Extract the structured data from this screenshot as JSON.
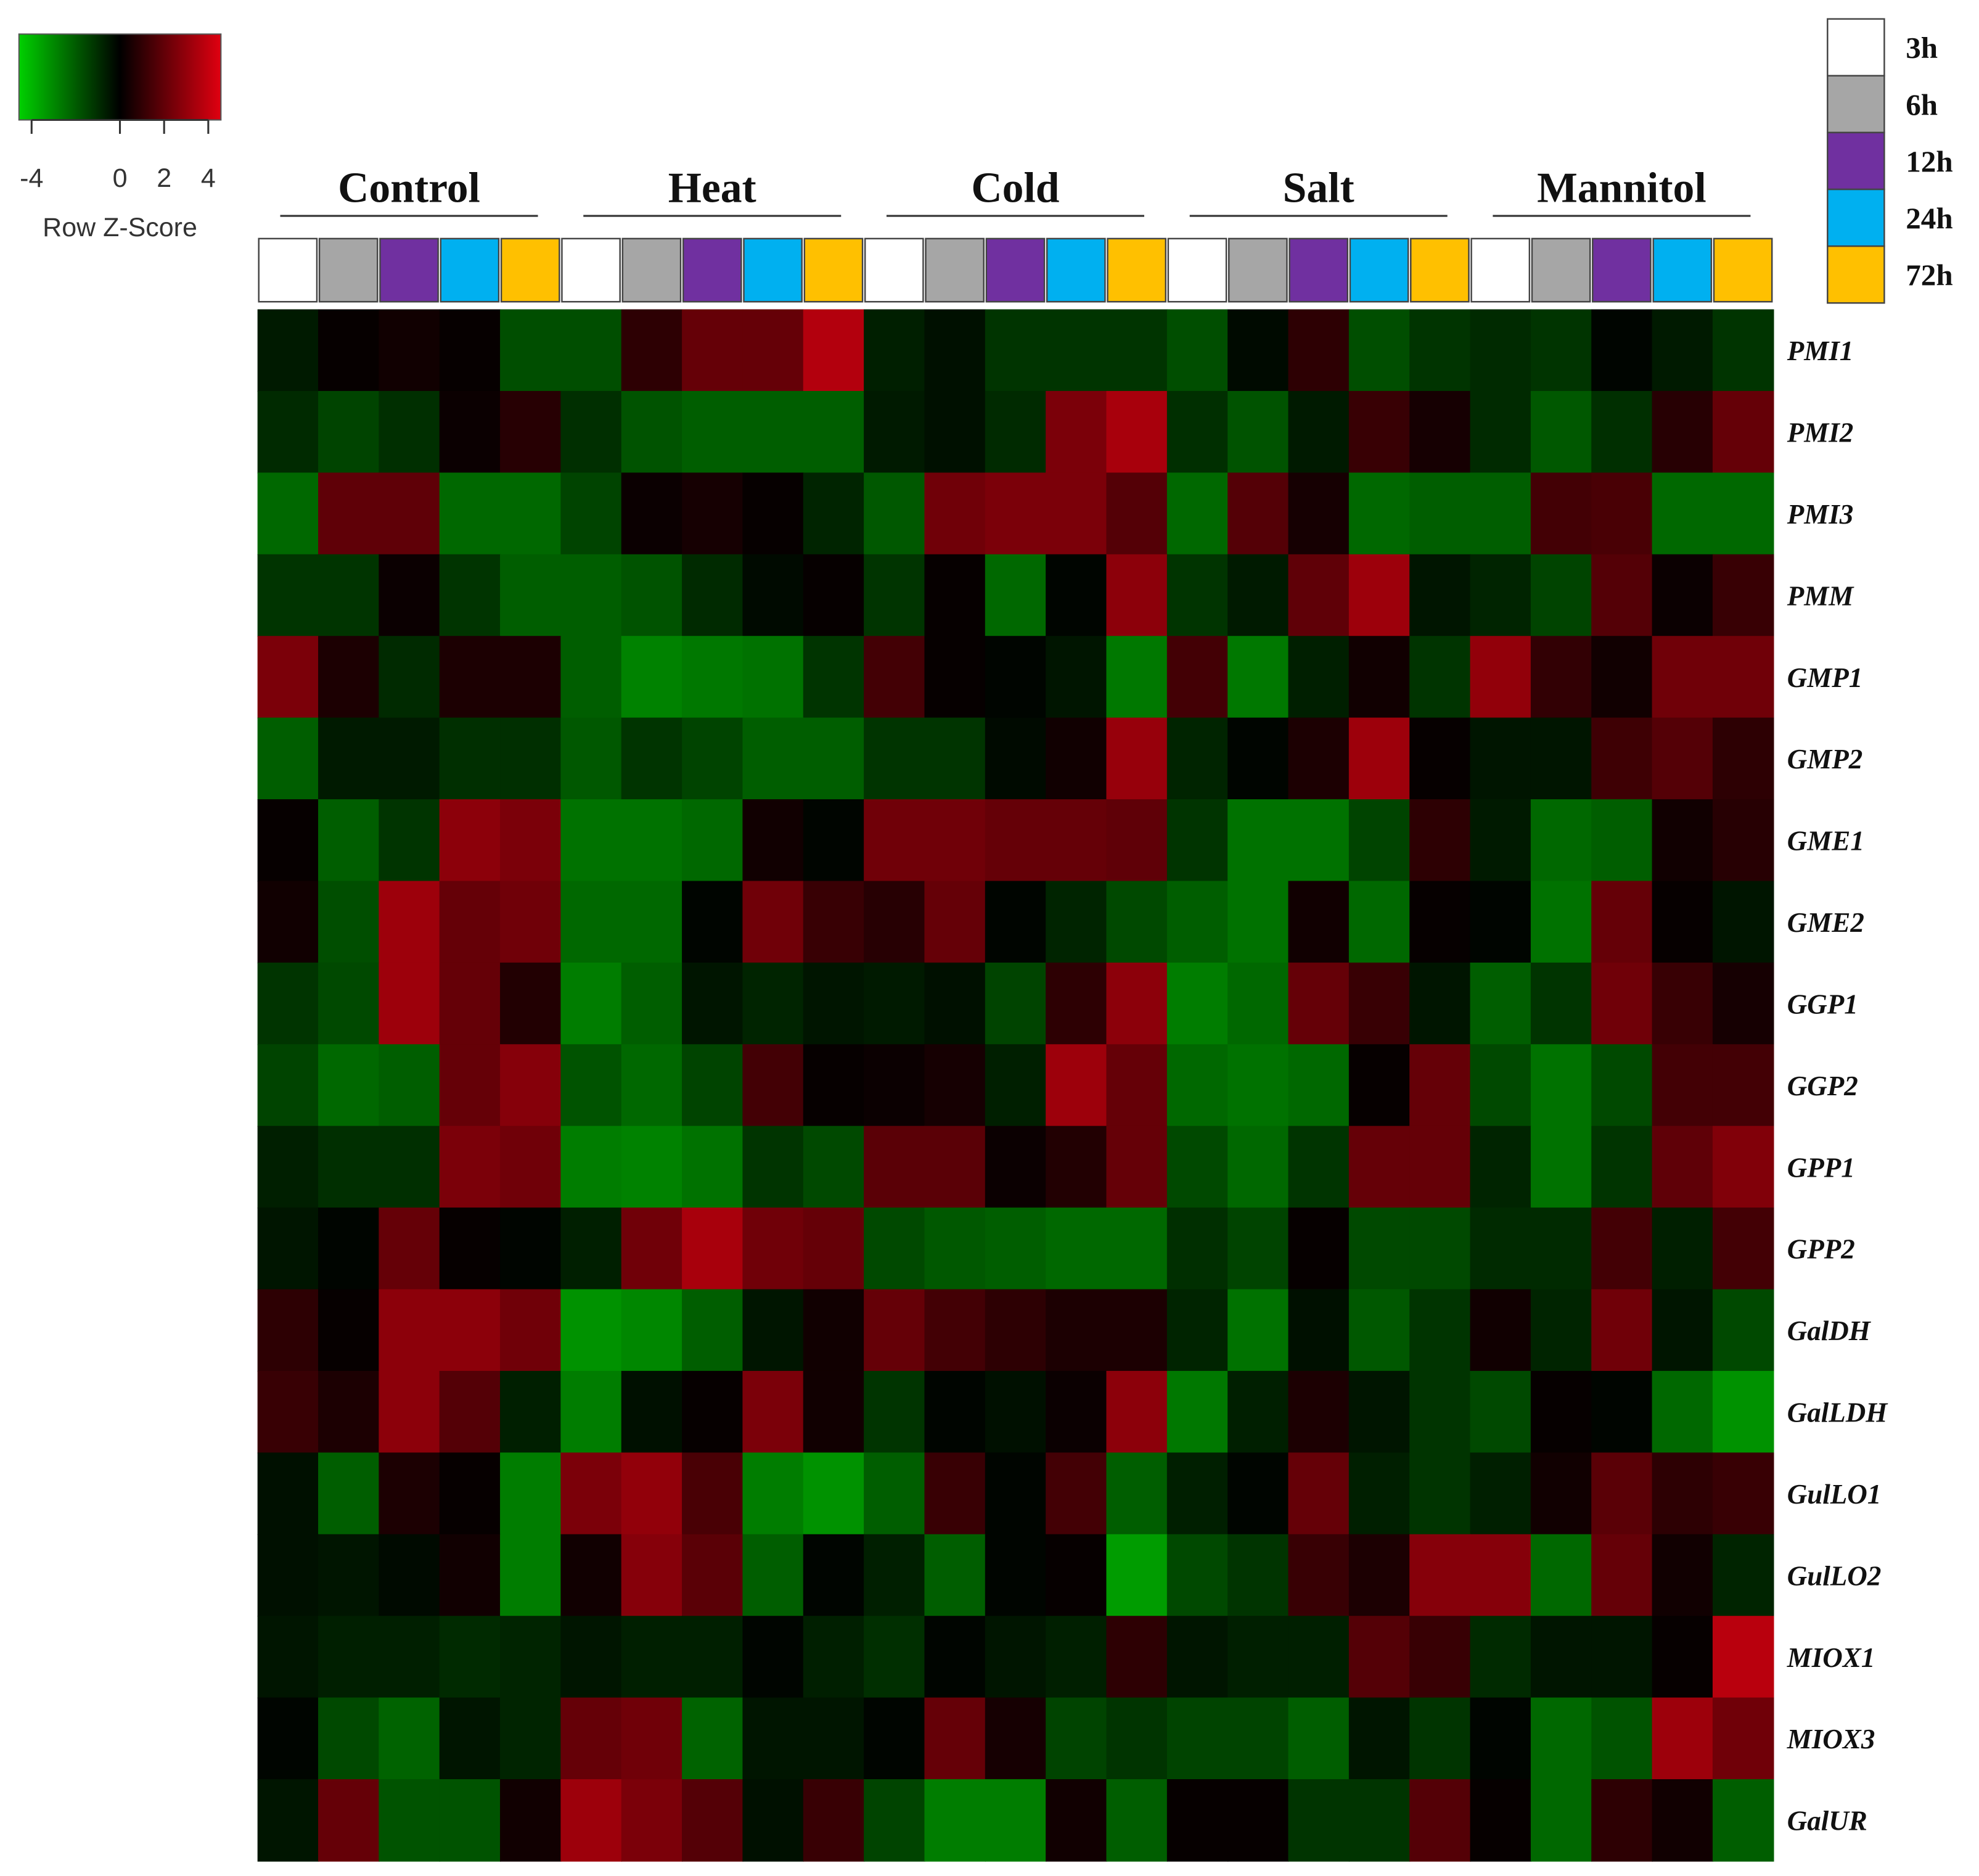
{
  "chart_data": {
    "type": "heatmap",
    "groups": [
      "Control",
      "Heat",
      "Cold",
      "Salt",
      "Mannitol"
    ],
    "times": [
      "3h",
      "6h",
      "12h",
      "24h",
      "72h"
    ],
    "time_colors": [
      "#ffffff",
      "#a6a6a6",
      "#7030a0",
      "#00b0f0",
      "#ffc000"
    ],
    "rows": [
      "PMI1",
      "PMI2",
      "PMI3",
      "PMM",
      "GMP1",
      "GMP2",
      "GME1",
      "GME2",
      "GGP1",
      "GGP2",
      "GPP1",
      "GPP2",
      "GalDH",
      "GalLDH",
      "GulLO1",
      "GulLO2",
      "MIOX1",
      "MIOX3",
      "GalUR"
    ],
    "colorbar": {
      "label": "Row Z-Score",
      "lim": [
        -4,
        4
      ],
      "ticks": [
        -4,
        0,
        2,
        4
      ],
      "colors": [
        "#00d000",
        "#000000",
        "#e00010"
      ]
    },
    "values": [
      [
        -0.5,
        0.1,
        0.3,
        0.1,
        -1.5,
        -1.5,
        0.8,
        1.8,
        1.8,
        3.2,
        -0.6,
        -0.3,
        -1.0,
        -1.0,
        -1.0,
        -1.5,
        -0.2,
        0.8,
        -1.5,
        -1.0,
        -0.8,
        -1.0,
        -0.1,
        -0.5,
        -1.0
      ],
      [
        -0.8,
        -1.3,
        -0.9,
        0.2,
        0.7,
        -0.9,
        -1.6,
        -1.8,
        -1.8,
        -1.8,
        -0.5,
        -0.3,
        -0.8,
        2.2,
        3.0,
        -0.9,
        -1.6,
        -0.5,
        1.0,
        0.4,
        -0.8,
        -1.7,
        -0.9,
        0.7,
        1.8
      ],
      [
        -2.0,
        1.7,
        1.7,
        -2.0,
        -2.0,
        -1.3,
        0.2,
        0.4,
        0.1,
        -0.7,
        -1.7,
        2.0,
        2.2,
        2.2,
        1.5,
        -2.0,
        1.5,
        0.4,
        -2.0,
        -1.8,
        -1.8,
        1.2,
        1.3,
        -2.0,
        -2.0
      ],
      [
        -1.0,
        -1.0,
        0.2,
        -1.0,
        -1.8,
        -1.8,
        -1.6,
        -0.8,
        -0.2,
        0.1,
        -1.0,
        0.1,
        -2.0,
        -0.1,
        2.5,
        -1.0,
        -0.5,
        1.7,
        2.8,
        -0.4,
        -0.7,
        -1.3,
        1.5,
        0.2,
        1.0
      ],
      [
        2.2,
        0.5,
        -0.8,
        0.5,
        0.5,
        -1.8,
        -2.5,
        -2.3,
        -2.2,
        -1.0,
        1.2,
        0.1,
        -0.1,
        -0.4,
        -2.3,
        1.2,
        -2.3,
        -0.6,
        0.3,
        -1.0,
        2.6,
        0.9,
        0.3,
        2.0,
        2.0
      ],
      [
        -1.8,
        -0.5,
        -0.5,
        -0.9,
        -0.9,
        -1.7,
        -1.0,
        -1.3,
        -1.8,
        -1.8,
        -1.0,
        -1.0,
        -0.2,
        0.3,
        2.7,
        -0.7,
        -0.1,
        0.5,
        2.8,
        0.1,
        -0.4,
        -0.4,
        1.1,
        1.5,
        0.8
      ],
      [
        0.1,
        -1.8,
        -1.0,
        2.5,
        2.2,
        -2.2,
        -2.2,
        -2.0,
        0.3,
        -0.1,
        2.0,
        2.0,
        1.8,
        1.8,
        1.7,
        -1.0,
        -2.2,
        -2.2,
        -1.3,
        0.8,
        -0.5,
        -2.0,
        -1.8,
        0.3,
        0.7
      ],
      [
        0.3,
        -1.5,
        2.8,
        1.8,
        2.0,
        -2.0,
        -2.0,
        -0.1,
        2.0,
        1.0,
        0.7,
        1.8,
        -0.1,
        -0.7,
        -1.4,
        -1.8,
        -2.2,
        0.3,
        -2.0,
        0.1,
        -0.1,
        -2.2,
        1.8,
        0.1,
        -0.4
      ],
      [
        -1.0,
        -1.4,
        2.8,
        1.8,
        0.6,
        -2.4,
        -1.8,
        -0.4,
        -0.7,
        -0.4,
        -0.5,
        -0.3,
        -1.3,
        0.8,
        2.5,
        -2.4,
        -2.0,
        1.8,
        1.0,
        -0.4,
        -1.8,
        -1.0,
        2.0,
        1.0,
        0.4
      ],
      [
        -1.3,
        -2.0,
        -1.8,
        1.8,
        2.4,
        -1.6,
        -2.0,
        -1.3,
        1.2,
        0.1,
        0.2,
        0.4,
        -0.6,
        2.8,
        1.8,
        -2.0,
        -2.2,
        -2.0,
        0.1,
        1.8,
        -1.4,
        -2.2,
        -1.4,
        1.2,
        1.2
      ],
      [
        -0.6,
        -0.9,
        -0.9,
        2.2,
        2.0,
        -2.4,
        -2.5,
        -2.2,
        -1.0,
        -1.4,
        1.6,
        1.6,
        0.2,
        0.6,
        1.8,
        -1.4,
        -2.0,
        -1.0,
        1.8,
        1.8,
        -0.7,
        -2.2,
        -1.0,
        1.7,
        2.3
      ],
      [
        -0.4,
        -0.1,
        1.8,
        0.1,
        -0.1,
        -0.6,
        2.0,
        3.0,
        2.0,
        1.8,
        -1.4,
        -1.7,
        -1.8,
        -2.0,
        -2.0,
        -0.9,
        -1.3,
        0.1,
        -1.4,
        -1.4,
        -0.8,
        -0.8,
        1.2,
        -0.6,
        1.2
      ],
      [
        0.8,
        0.1,
        2.5,
        2.5,
        2.0,
        -2.8,
        -2.6,
        -1.8,
        -0.4,
        0.3,
        1.8,
        1.2,
        0.8,
        0.5,
        0.5,
        -0.7,
        -2.2,
        -0.3,
        -1.7,
        -1.0,
        0.3,
        -0.7,
        2.0,
        -0.4,
        -1.4
      ],
      [
        1.0,
        0.5,
        2.5,
        1.5,
        -0.6,
        -2.4,
        -0.3,
        0.1,
        2.2,
        0.3,
        -1.0,
        -0.1,
        -0.3,
        0.2,
        2.5,
        -2.3,
        -0.6,
        0.5,
        -0.4,
        -1.0,
        -1.4,
        0.1,
        -0.1,
        -2.0,
        -2.8
      ],
      [
        -0.3,
        -1.8,
        0.5,
        0.1,
        -2.4,
        2.2,
        2.6,
        1.3,
        -2.4,
        -2.8,
        -1.8,
        1.0,
        -0.1,
        1.2,
        -1.8,
        -0.6,
        -0.1,
        1.8,
        -0.6,
        -1.0,
        -0.6,
        0.3,
        1.6,
        0.8,
        1.0
      ],
      [
        -0.3,
        -0.4,
        -0.2,
        0.3,
        -2.4,
        0.3,
        2.4,
        1.6,
        -1.8,
        -0.1,
        -0.6,
        -1.8,
        -0.1,
        0.1,
        -3.0,
        -1.4,
        -1.0,
        1.0,
        0.5,
        2.4,
        2.4,
        -2.0,
        1.8,
        0.3,
        -0.7
      ],
      [
        -0.4,
        -0.6,
        -0.6,
        -0.8,
        -0.7,
        -0.4,
        -0.6,
        -0.6,
        -0.1,
        -0.6,
        -0.9,
        -0.1,
        -0.4,
        -0.6,
        0.8,
        -0.4,
        -0.6,
        -0.6,
        1.5,
        1.0,
        -0.8,
        -0.4,
        -0.4,
        0.1,
        3.3
      ],
      [
        -0.1,
        -1.4,
        -1.9,
        -0.4,
        -0.7,
        1.8,
        2.0,
        -1.9,
        -0.4,
        -0.4,
        -0.1,
        1.8,
        0.4,
        -1.3,
        -1.0,
        -1.3,
        -1.3,
        -1.8,
        -0.4,
        -1.0,
        -0.1,
        -2.0,
        -1.6,
        2.8,
        2.0
      ],
      [
        -0.4,
        1.8,
        -1.6,
        -1.6,
        0.3,
        2.8,
        2.2,
        1.5,
        -0.3,
        1.0,
        -1.3,
        -2.4,
        -2.4,
        0.3,
        -1.8,
        0.1,
        0.1,
        -1.0,
        -1.0,
        1.5,
        0.1,
        -2.0,
        0.8,
        0.3,
        -1.8
      ]
    ]
  }
}
